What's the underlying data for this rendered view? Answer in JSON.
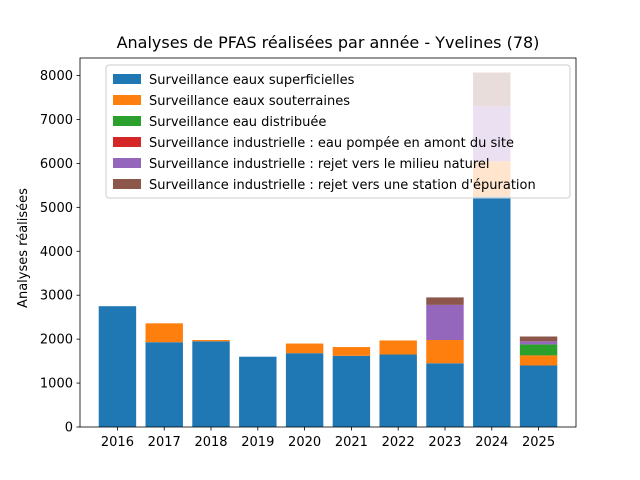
{
  "chart_data": {
    "type": "bar",
    "stacked": true,
    "title": "Analyses de PFAS réalisées par année - Yvelines (78)",
    "xlabel": "",
    "ylabel": "Analyses réalisées",
    "ylim": [
      0,
      8400
    ],
    "yticks": [
      0,
      1000,
      2000,
      3000,
      4000,
      5000,
      6000,
      7000,
      8000
    ],
    "grid": false,
    "legend_position": "top-right",
    "categories": [
      "2016",
      "2017",
      "2018",
      "2019",
      "2020",
      "2021",
      "2022",
      "2023",
      "2024",
      "2025"
    ],
    "series": [
      {
        "name": "Surveillance eaux superficielles",
        "color": "#1f77b4",
        "values": [
          2750,
          1930,
          1950,
          1600,
          1680,
          1620,
          1650,
          1450,
          5250,
          1400
        ]
      },
      {
        "name": "Surveillance eaux souterraines",
        "color": "#ff7f0e",
        "values": [
          0,
          430,
          30,
          0,
          220,
          200,
          320,
          530,
          800,
          230
        ]
      },
      {
        "name": "Surveillance eau distribuée",
        "color": "#2ca02c",
        "values": [
          0,
          0,
          0,
          0,
          0,
          0,
          0,
          0,
          0,
          250
        ]
      },
      {
        "name": "Surveillance industrielle : eau pompée en amont du site",
        "color": "#d62728",
        "values": [
          0,
          0,
          0,
          0,
          0,
          0,
          0,
          0,
          0,
          0
        ]
      },
      {
        "name": "Surveillance industrielle : rejet vers le milieu naturel",
        "color": "#9467bd",
        "values": [
          0,
          0,
          0,
          0,
          0,
          0,
          0,
          800,
          1250,
          70
        ]
      },
      {
        "name": "Surveillance industrielle : rejet vers une station d'épuration",
        "color": "#8c564b",
        "values": [
          0,
          0,
          0,
          0,
          0,
          0,
          0,
          170,
          770,
          110
        ]
      }
    ]
  }
}
